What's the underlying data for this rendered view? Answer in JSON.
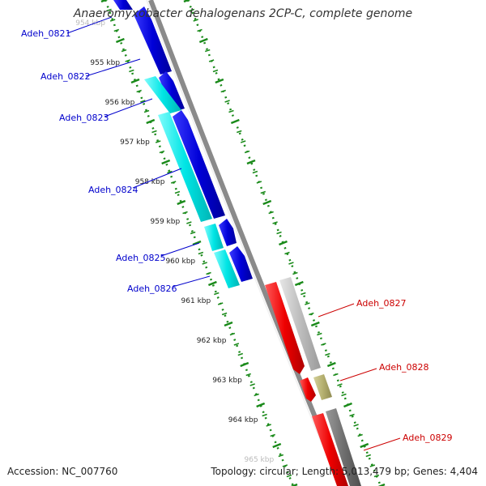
{
  "title": "Anaeromyxobacter dehalogenans 2CP-C, complete genome",
  "accession_text": "Accession: NC_007760",
  "topology_text": "Topology: circular; Length: 5,013,479 bp; Genes: 4,404",
  "kbp_ticks": [
    "954 kbp",
    "955 kbp",
    "956 kbp",
    "957 kbp",
    "958 kbp",
    "959 kbp",
    "960 kbp",
    "961 kbp",
    "962 kbp",
    "963 kbp",
    "964 kbp",
    "965 kbp"
  ],
  "colors": {
    "forward_cds": "#0000ee",
    "forward_gene": "#00e5e5",
    "reverse_cds": "#ee0000",
    "reverse_gene_gray": "#b8b8b8",
    "reverse_gene_dark": "#6f6f6f",
    "reverse_gene_olive": "#b5b070",
    "backbone": "#8a8a8a",
    "tick_green": "#1a8a1a",
    "label_forward": "#0000cc",
    "label_reverse": "#cc0000"
  },
  "gene_labels": [
    {
      "name": "Adeh_0821",
      "strand": "forward"
    },
    {
      "name": "Adeh_0822",
      "strand": "forward"
    },
    {
      "name": "Adeh_0823",
      "strand": "forward"
    },
    {
      "name": "Adeh_0824",
      "strand": "forward"
    },
    {
      "name": "Adeh_0825",
      "strand": "forward"
    },
    {
      "name": "Adeh_0826",
      "strand": "forward"
    },
    {
      "name": "Adeh_0827",
      "strand": "reverse"
    },
    {
      "name": "Adeh_0828",
      "strand": "reverse"
    },
    {
      "name": "Adeh_0829",
      "strand": "reverse"
    }
  ]
}
